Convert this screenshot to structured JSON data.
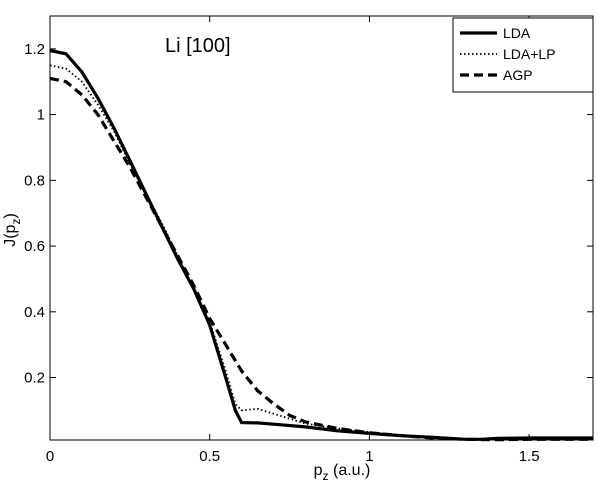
{
  "chart_data": {
    "type": "line",
    "annotation": "Li [100]",
    "xlabel_main": "p",
    "xlabel_sub": "z",
    "xlabel_rest": " (a.u.)",
    "ylabel_main": "J(p",
    "ylabel_sub": "z",
    "ylabel_rest": ")",
    "xlim": [
      0,
      1.7
    ],
    "ylim": [
      0.01,
      1.3
    ],
    "xticks": [
      0,
      0.5,
      1,
      1.5
    ],
    "xtick_labels": [
      "0",
      "0.5",
      "1",
      "1.5"
    ],
    "yticks": [
      0.2,
      0.4,
      0.6,
      0.8,
      1.0,
      1.2
    ],
    "ytick_labels": [
      "0.2",
      "0.4",
      "0.6",
      "0.8",
      "1",
      "1.2"
    ],
    "grid": false,
    "legend_position": "top-right",
    "series": [
      {
        "name": "LDA",
        "style": "solid",
        "color": "#000000",
        "x": [
          0,
          0.05,
          0.1,
          0.15,
          0.2,
          0.25,
          0.3,
          0.35,
          0.4,
          0.45,
          0.5,
          0.55,
          0.58,
          0.6,
          0.65,
          0.7,
          0.8,
          0.9,
          1.0,
          1.1,
          1.2,
          1.3,
          1.35,
          1.4,
          1.5,
          1.6,
          1.7
        ],
        "y": [
          1.195,
          1.185,
          1.13,
          1.05,
          0.96,
          0.86,
          0.76,
          0.66,
          0.56,
          0.47,
          0.36,
          0.2,
          0.1,
          0.063,
          0.062,
          0.058,
          0.05,
          0.038,
          0.03,
          0.023,
          0.018,
          0.012,
          0.012,
          0.015,
          0.016,
          0.016,
          0.016
        ]
      },
      {
        "name": "LDA+LP",
        "style": "dotted",
        "color": "#000000",
        "x": [
          0,
          0.05,
          0.1,
          0.15,
          0.2,
          0.25,
          0.3,
          0.35,
          0.4,
          0.45,
          0.5,
          0.55,
          0.58,
          0.6,
          0.65,
          0.7,
          0.8,
          0.9,
          1.0,
          1.1,
          1.2,
          1.3,
          1.35,
          1.4,
          1.5,
          1.6,
          1.7
        ],
        "y": [
          1.15,
          1.14,
          1.1,
          1.03,
          0.95,
          0.85,
          0.76,
          0.67,
          0.57,
          0.47,
          0.37,
          0.22,
          0.12,
          0.1,
          0.105,
          0.09,
          0.06,
          0.045,
          0.034,
          0.025,
          0.018,
          0.012,
          0.011,
          0.012,
          0.013,
          0.013,
          0.013
        ]
      },
      {
        "name": "AGP",
        "style": "dashed",
        "color": "#000000",
        "x": [
          0,
          0.05,
          0.1,
          0.15,
          0.2,
          0.25,
          0.3,
          0.35,
          0.4,
          0.45,
          0.5,
          0.55,
          0.6,
          0.65,
          0.7,
          0.75,
          0.8,
          0.9,
          1.0,
          1.1,
          1.2,
          1.3,
          1.4,
          1.5,
          1.6,
          1.7
        ],
        "y": [
          1.11,
          1.1,
          1.06,
          1.0,
          0.92,
          0.84,
          0.75,
          0.66,
          0.57,
          0.48,
          0.38,
          0.3,
          0.22,
          0.16,
          0.12,
          0.085,
          0.065,
          0.045,
          0.032,
          0.023,
          0.016,
          0.012,
          0.011,
          0.012,
          0.012,
          0.012
        ]
      }
    ]
  }
}
